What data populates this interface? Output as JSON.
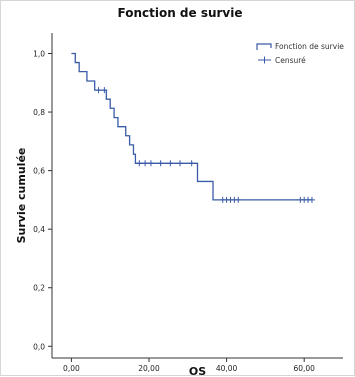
{
  "chart_data": {
    "type": "line",
    "title": "Fonction de survie",
    "xlabel": "OS",
    "ylabel": "Survie cumulée",
    "xlim": [
      -5,
      70
    ],
    "ylim": [
      -0.04,
      1.07
    ],
    "x_ticks": [
      0,
      20,
      40,
      60
    ],
    "x_tick_labels": [
      "0,00",
      "20,00",
      "40,00",
      "60,00"
    ],
    "y_ticks": [
      0,
      0.2,
      0.4,
      0.6,
      0.8,
      1.0
    ],
    "y_tick_labels": [
      "0,0",
      "0,2",
      "0,4",
      "0,6",
      "0,8",
      "1,0"
    ],
    "grid": false,
    "legend_position": "top-right",
    "colors": {
      "survival": "#3a5ba8",
      "censored": "#3a5ba8",
      "axis": "#333333"
    },
    "series": [
      {
        "name": "Fonction de survie",
        "step": true,
        "points": [
          [
            0,
            1.0
          ],
          [
            1,
            0.969
          ],
          [
            2,
            0.938
          ],
          [
            4,
            0.906
          ],
          [
            6,
            0.875
          ],
          [
            9,
            0.844
          ],
          [
            10,
            0.813
          ],
          [
            11,
            0.781
          ],
          [
            12,
            0.75
          ],
          [
            14,
            0.719
          ],
          [
            15,
            0.688
          ],
          [
            16,
            0.656
          ],
          [
            16.5,
            0.625
          ],
          [
            32,
            0.625
          ],
          [
            32.5,
            0.563
          ],
          [
            36.5,
            0.5
          ],
          [
            62,
            0.5
          ]
        ]
      },
      {
        "name": "Censuré",
        "marker": "plus",
        "points": [
          [
            7,
            0.875
          ],
          [
            8.5,
            0.875
          ],
          [
            17.5,
            0.625
          ],
          [
            19,
            0.625
          ],
          [
            20.5,
            0.625
          ],
          [
            23,
            0.625
          ],
          [
            25.5,
            0.625
          ],
          [
            28,
            0.625
          ],
          [
            31,
            0.625
          ],
          [
            39,
            0.5
          ],
          [
            40,
            0.5
          ],
          [
            41,
            0.5
          ],
          [
            42,
            0.5
          ],
          [
            43,
            0.5
          ],
          [
            59,
            0.5
          ],
          [
            60,
            0.5
          ],
          [
            61,
            0.5
          ],
          [
            62,
            0.5
          ]
        ]
      }
    ]
  }
}
